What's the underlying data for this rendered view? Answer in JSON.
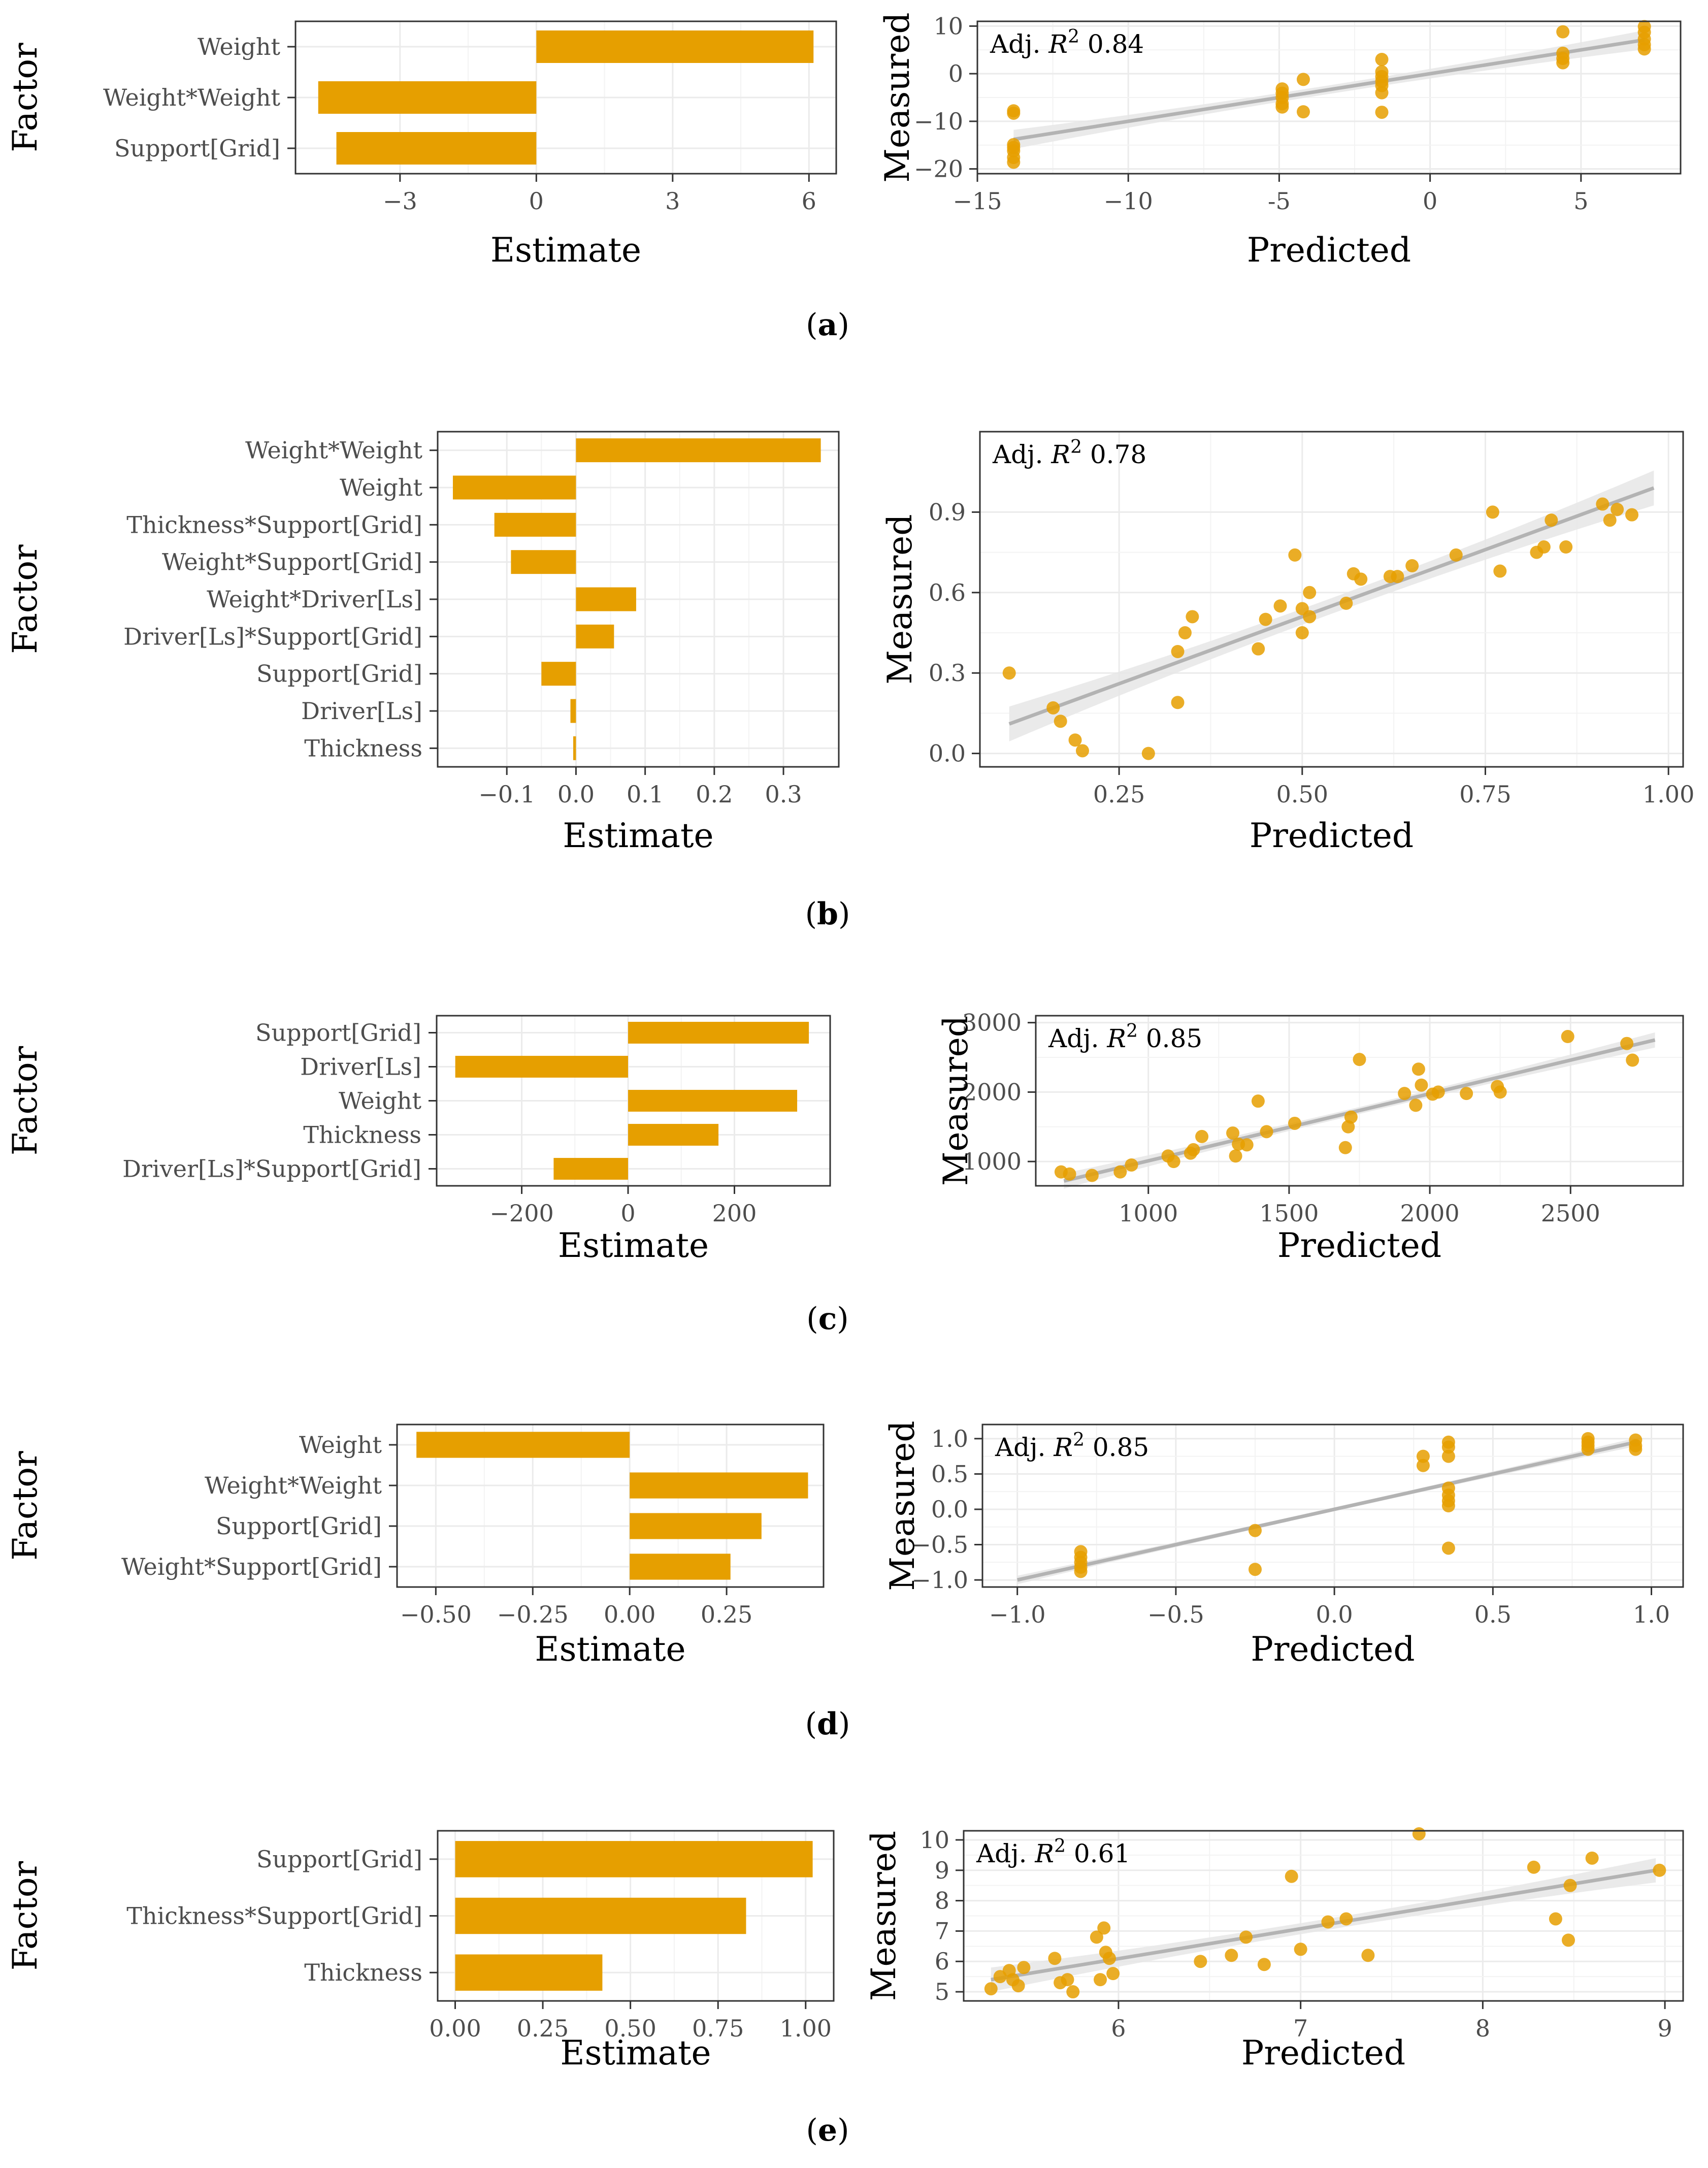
{
  "colors": {
    "bar": "#E69F00",
    "point": "#E69F00",
    "fit_line": "#b3b3b3",
    "ci_band": "#e6e6e6",
    "grid": "#ebebeb",
    "border": "#333333",
    "tick_text": "#4d4d4d"
  },
  "chart_data": [
    {
      "id": "a-estimates",
      "type": "bar",
      "orientation": "horizontal",
      "categories": [
        "Weight",
        "Weight*Weight",
        "Support[Grid]"
      ],
      "values": [
        6.1,
        -4.8,
        -4.4
      ],
      "xlabel": "Estimate",
      "ylabel": "Factor",
      "xlim": [
        -5.3,
        6.6
      ],
      "xticks": [
        -3,
        0,
        3,
        6
      ],
      "xtick_labels": [
        "−3",
        "0",
        "3",
        "6"
      ]
    },
    {
      "id": "a-fit",
      "type": "scatter",
      "xlabel": "Predicted",
      "ylabel": "Measured",
      "annotation": {
        "prefix": "Adj. ",
        "r": "R",
        "sup": "2",
        "value": " 0.84"
      },
      "xlim": [
        -15,
        8.3
      ],
      "ylim": [
        -21,
        11
      ],
      "xticks": [
        -15,
        -10,
        -5,
        0,
        5
      ],
      "xtick_labels": [
        "−15",
        "−10",
        "-5",
        "0",
        "5"
      ],
      "yticks": [
        -20,
        -10,
        0,
        10
      ],
      "ytick_labels": [
        "−20",
        "−10",
        "0",
        "10"
      ],
      "fit": {
        "x": [
          -13.8,
          7.1
        ],
        "y": [
          -13.8,
          7.1
        ]
      },
      "ci_halfwidth": 2.0,
      "x": [
        -13.8,
        -13.8,
        -13.8,
        -13.8,
        -13.8,
        -13.8,
        -13.8,
        -4.9,
        -4.9,
        -4.9,
        -4.9,
        -4.9,
        -4.2,
        -4.2,
        -1.6,
        -1.6,
        -1.6,
        -1.6,
        -1.6,
        -1.6,
        -1.6,
        4.4,
        4.4,
        4.4,
        4.4,
        7.1,
        7.1,
        7.1,
        7.1,
        7.1
      ],
      "y": [
        -7.8,
        -8.3,
        -14.9,
        -16.2,
        -17.6,
        -18.6,
        -15.5,
        -3.2,
        -4.1,
        -5.0,
        -6.3,
        -7.0,
        -1.2,
        -8.0,
        3.0,
        0.4,
        -0.6,
        -1.6,
        -2.5,
        -4.0,
        -8.1,
        8.8,
        4.3,
        3.2,
        2.3,
        9.9,
        8.7,
        7.3,
        6.1,
        5.2
      ]
    },
    {
      "id": "b-estimates",
      "type": "bar",
      "orientation": "horizontal",
      "categories": [
        "Weight*Weight",
        "Weight",
        "Thickness*Support[Grid]",
        "Weight*Support[Grid]",
        "Weight*Driver[Ls]",
        "Driver[Ls]*Support[Grid]",
        "Support[Grid]",
        "Driver[Ls]",
        "Thickness"
      ],
      "values": [
        0.354,
        -0.178,
        -0.118,
        -0.094,
        0.087,
        0.055,
        -0.05,
        -0.008,
        -0.004
      ],
      "xlabel": "Estimate",
      "ylabel": "Factor",
      "xlim": [
        -0.2,
        0.38
      ],
      "xticks": [
        -0.1,
        0.0,
        0.1,
        0.2,
        0.3
      ],
      "xtick_labels": [
        "−0.1",
        "0.0",
        "0.1",
        "0.2",
        "0.3"
      ]
    },
    {
      "id": "b-fit",
      "type": "scatter",
      "xlabel": "Predicted",
      "ylabel": "Measured",
      "annotation": {
        "prefix": "Adj. ",
        "r": "R",
        "sup": "2",
        "value": " 0.78"
      },
      "xlim": [
        0.06,
        1.02
      ],
      "ylim": [
        -0.05,
        1.2
      ],
      "xticks": [
        0.25,
        0.5,
        0.75,
        1.0
      ],
      "xtick_labels": [
        "0.25",
        "0.50",
        "0.75",
        "1.00"
      ],
      "yticks": [
        0.0,
        0.3,
        0.6,
        0.9
      ],
      "ytick_labels": [
        "0.0",
        "0.3",
        "0.6",
        "0.9"
      ],
      "fit": {
        "x": [
          0.1,
          0.98
        ],
        "y": [
          0.11,
          0.99
        ]
      },
      "ci_halfwidth": 0.065,
      "x": [
        0.1,
        0.16,
        0.17,
        0.19,
        0.2,
        0.29,
        0.33,
        0.33,
        0.34,
        0.35,
        0.44,
        0.45,
        0.47,
        0.49,
        0.5,
        0.5,
        0.51,
        0.51,
        0.56,
        0.57,
        0.58,
        0.62,
        0.63,
        0.65,
        0.71,
        0.76,
        0.77,
        0.82,
        0.83,
        0.84,
        0.86,
        0.91,
        0.92,
        0.93,
        0.95
      ],
      "y": [
        0.3,
        0.17,
        0.12,
        0.05,
        0.01,
        0.0,
        0.19,
        0.38,
        0.45,
        0.51,
        0.39,
        0.5,
        0.55,
        0.74,
        0.45,
        0.54,
        0.51,
        0.6,
        0.56,
        0.67,
        0.65,
        0.66,
        0.66,
        0.7,
        0.74,
        0.9,
        0.68,
        0.75,
        0.77,
        0.87,
        0.77,
        0.93,
        0.87,
        0.91,
        0.89
      ]
    },
    {
      "id": "c-estimates",
      "type": "bar",
      "orientation": "horizontal",
      "categories": [
        "Support[Grid]",
        "Driver[Ls]",
        "Weight",
        "Thickness",
        "Driver[Ls]*Support[Grid]"
      ],
      "values": [
        340,
        -325,
        318,
        170,
        -140
      ],
      "xlabel": "Estimate",
      "ylabel": "Factor",
      "xlim": [
        -360,
        380
      ],
      "xticks": [
        -200,
        0,
        200
      ],
      "xtick_labels": [
        "−200",
        "0",
        "200"
      ]
    },
    {
      "id": "c-fit",
      "type": "scatter",
      "xlabel": "Predicted",
      "ylabel": "Measured",
      "annotation": {
        "prefix": "Adj. ",
        "r": "R",
        "sup": "2",
        "value": " 0.85"
      },
      "xlim": [
        600,
        2900
      ],
      "ylim": [
        650,
        3100
      ],
      "xticks": [
        1000,
        1500,
        2000,
        2500
      ],
      "xtick_labels": [
        "1000",
        "1500",
        "2000",
        "2500"
      ],
      "yticks": [
        1000,
        2000,
        3000
      ],
      "ytick_labels": [
        "1000",
        "2000",
        "3000"
      ],
      "fit": {
        "x": [
          700,
          2800
        ],
        "y": [
          720,
          2750
        ]
      },
      "ci_halfwidth": 110,
      "x": [
        690,
        720,
        800,
        900,
        940,
        1070,
        1090,
        1150,
        1160,
        1190,
        1300,
        1310,
        1320,
        1350,
        1390,
        1420,
        1520,
        1700,
        1710,
        1720,
        1750,
        1910,
        1950,
        1960,
        1970,
        2010,
        2030,
        2130,
        2240,
        2250,
        2490,
        2700,
        2720
      ],
      "y": [
        850,
        820,
        800,
        850,
        950,
        1080,
        1000,
        1120,
        1170,
        1360,
        1410,
        1080,
        1250,
        1240,
        1870,
        1430,
        1550,
        1200,
        1500,
        1640,
        2470,
        1980,
        1810,
        2330,
        2100,
        1970,
        2000,
        1980,
        2080,
        2000,
        2800,
        2700,
        2460
      ]
    },
    {
      "id": "d-estimates",
      "type": "bar",
      "orientation": "horizontal",
      "categories": [
        "Weight",
        "Weight*Weight",
        "Support[Grid]",
        "Weight*Support[Grid]"
      ],
      "values": [
        -0.55,
        0.46,
        0.34,
        0.26
      ],
      "xlabel": "Estimate",
      "ylabel": "Factor",
      "xlim": [
        -0.6,
        0.5
      ],
      "xticks": [
        -0.5,
        -0.25,
        0.0,
        0.25
      ],
      "xtick_labels": [
        "−0.50",
        "−0.25",
        "0.00",
        "0.25"
      ]
    },
    {
      "id": "d-fit",
      "type": "scatter",
      "xlabel": "Predicted",
      "ylabel": "Measured",
      "annotation": {
        "prefix": "Adj. ",
        "r": "R",
        "sup": "2",
        "value": " 0.85"
      },
      "xlim": [
        -1.11,
        1.1
      ],
      "ylim": [
        -1.1,
        1.2
      ],
      "xticks": [
        -1.0,
        -0.5,
        0.0,
        0.5,
        1.0
      ],
      "xtick_labels": [
        "−1.0",
        "−0.5",
        "0.0",
        "0.5",
        "1.0"
      ],
      "yticks": [
        -1.0,
        -0.5,
        0.0,
        0.5,
        1.0
      ],
      "ytick_labels": [
        "−1.0",
        "−0.5",
        "0.0",
        "0.5",
        "1.0"
      ],
      "fit": {
        "x": [
          -1.0,
          0.96
        ],
        "y": [
          -1.0,
          0.96
        ]
      },
      "ci_halfwidth": 0.06,
      "x": [
        -0.8,
        -0.8,
        -0.8,
        -0.8,
        -0.8,
        -0.25,
        -0.25,
        0.28,
        0.28,
        0.36,
        0.36,
        0.36,
        0.36,
        0.36,
        0.36,
        0.36,
        0.36,
        0.8,
        0.8,
        0.8,
        0.8,
        0.95,
        0.95,
        0.95
      ],
      "y": [
        -0.6,
        -0.68,
        -0.75,
        -0.82,
        -0.88,
        -0.3,
        -0.85,
        0.75,
        0.62,
        0.95,
        0.88,
        0.75,
        0.3,
        0.2,
        0.12,
        0.05,
        -0.55,
        1.0,
        0.95,
        0.9,
        0.85,
        0.98,
        0.9,
        0.85
      ]
    },
    {
      "id": "e-estimates",
      "type": "bar",
      "orientation": "horizontal",
      "categories": [
        "Support[Grid]",
        "Thickness*Support[Grid]",
        "Thickness"
      ],
      "values": [
        1.02,
        0.83,
        0.42
      ],
      "xlabel": "Estimate",
      "ylabel": "Factor",
      "xlim": [
        -0.05,
        1.08
      ],
      "xticks": [
        0.0,
        0.25,
        0.5,
        0.75,
        1.0
      ],
      "xtick_labels": [
        "0.00",
        "0.25",
        "0.50",
        "0.75",
        "1.00"
      ]
    },
    {
      "id": "e-fit",
      "type": "scatter",
      "xlabel": "Predicted",
      "ylabel": "Measured",
      "annotation": {
        "prefix": "Adj. ",
        "r": "R",
        "sup": "2",
        "value": " 0.61"
      },
      "xlim": [
        5.15,
        9.1
      ],
      "ylim": [
        4.7,
        10.3
      ],
      "xticks": [
        6,
        7,
        8,
        9
      ],
      "xtick_labels": [
        "6",
        "7",
        "8",
        "9"
      ],
      "yticks": [
        5,
        6,
        7,
        8,
        9,
        10
      ],
      "ytick_labels": [
        "5",
        "6",
        "7",
        "8",
        "9",
        "10"
      ],
      "fit": {
        "x": [
          5.3,
          8.95
        ],
        "y": [
          5.4,
          9.0
        ]
      },
      "ci_halfwidth": 0.4,
      "x": [
        5.3,
        5.35,
        5.4,
        5.42,
        5.45,
        5.48,
        5.65,
        5.68,
        5.72,
        5.75,
        5.88,
        5.9,
        5.92,
        5.93,
        5.95,
        5.97,
        6.45,
        6.62,
        6.7,
        6.8,
        6.95,
        7.0,
        7.15,
        7.25,
        7.37,
        7.65,
        8.28,
        8.4,
        8.47,
        8.48,
        8.6,
        8.97
      ],
      "y": [
        5.1,
        5.5,
        5.7,
        5.4,
        5.2,
        5.8,
        6.1,
        5.3,
        5.4,
        5.0,
        6.8,
        5.4,
        7.1,
        6.3,
        6.1,
        5.6,
        6.0,
        6.2,
        6.8,
        5.9,
        8.8,
        6.4,
        7.3,
        7.4,
        6.2,
        10.2,
        9.1,
        7.4,
        6.7,
        8.5,
        9.4,
        9.0
      ]
    }
  ],
  "captions": {
    "a": {
      "open": "(",
      "letter": "a",
      "close": ")"
    },
    "b": {
      "open": "(",
      "letter": "b",
      "close": ")"
    },
    "c": {
      "open": "(",
      "letter": "c",
      "close": ")"
    },
    "d": {
      "open": "(",
      "letter": "d",
      "close": ")"
    },
    "e": {
      "open": "(",
      "letter": "e",
      "close": ")"
    }
  }
}
